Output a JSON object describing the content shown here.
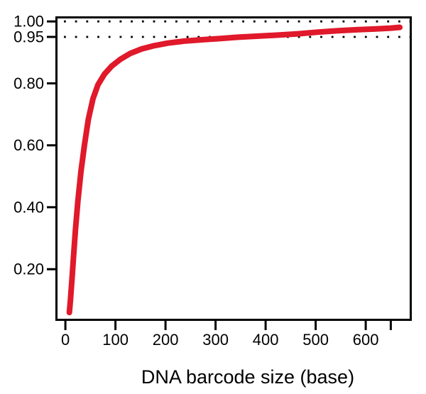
{
  "chart_data": {
    "type": "line",
    "title": "",
    "xlabel": "DNA barcode size (base)",
    "ylabel": "",
    "xlim": [
      -20,
      692
    ],
    "ylim": [
      0.033,
      1.0165
    ],
    "grid": false,
    "legend": false,
    "frame_color": "#000000",
    "background": "#ffffff",
    "x_ticks": [
      {
        "value": 0,
        "label": "0"
      },
      {
        "value": 100,
        "label": "100"
      },
      {
        "value": 200,
        "label": "200"
      },
      {
        "value": 300,
        "label": "300"
      },
      {
        "value": 400,
        "label": "400"
      },
      {
        "value": 500,
        "label": "500"
      },
      {
        "value": 600,
        "label": "600"
      },
      {
        "value": 650,
        "label": ""
      }
    ],
    "y_ticks": [
      {
        "value": 0.2,
        "label": "0.20"
      },
      {
        "value": 0.4,
        "label": "0.40"
      },
      {
        "value": 0.6,
        "label": "0.60"
      },
      {
        "value": 0.8,
        "label": "0.80"
      },
      {
        "value": 0.95,
        "label": "0.95"
      },
      {
        "value": 1.0,
        "label": "1.00"
      }
    ],
    "reference_lines": [
      {
        "y": 0.95,
        "style": "dotted",
        "color": "#000000"
      },
      {
        "y": 1.0,
        "style": "dotted",
        "color": "#000000"
      }
    ],
    "series": [
      {
        "color": "#e0192b",
        "width": 8,
        "points": [
          [
            8,
            0.06
          ],
          [
            10,
            0.1
          ],
          [
            13,
            0.165
          ],
          [
            16,
            0.235
          ],
          [
            20,
            0.325
          ],
          [
            25,
            0.42
          ],
          [
            31,
            0.515
          ],
          [
            38,
            0.6
          ],
          [
            46,
            0.685
          ],
          [
            55,
            0.75
          ],
          [
            65,
            0.795
          ],
          [
            78,
            0.83
          ],
          [
            92,
            0.855
          ],
          [
            110,
            0.878
          ],
          [
            130,
            0.897
          ],
          [
            152,
            0.911
          ],
          [
            175,
            0.921
          ],
          [
            205,
            0.93
          ],
          [
            240,
            0.937
          ],
          [
            275,
            0.941
          ],
          [
            310,
            0.945
          ],
          [
            345,
            0.949
          ],
          [
            385,
            0.9525
          ],
          [
            425,
            0.956
          ],
          [
            465,
            0.96
          ],
          [
            505,
            0.9655
          ],
          [
            545,
            0.97
          ],
          [
            585,
            0.9735
          ],
          [
            620,
            0.976
          ],
          [
            650,
            0.9785
          ],
          [
            668,
            0.981
          ]
        ]
      }
    ]
  }
}
